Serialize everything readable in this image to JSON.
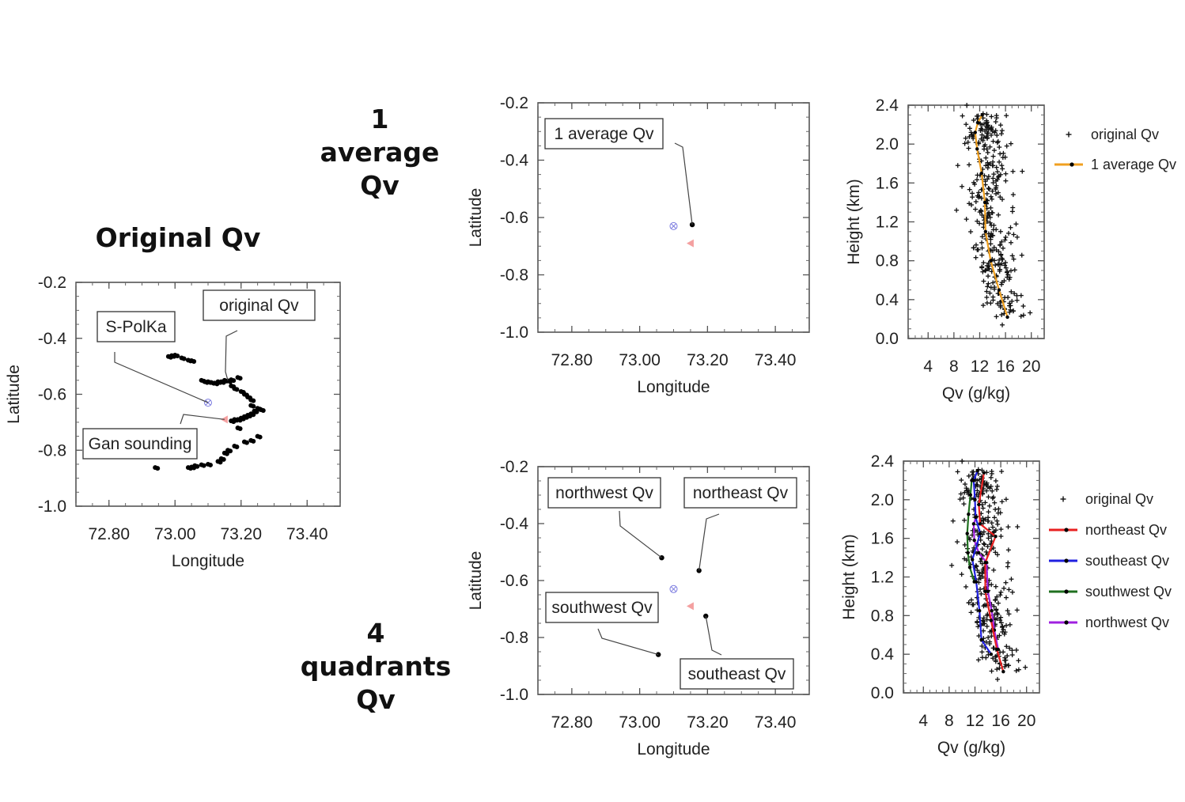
{
  "headings": {
    "original": "Original Qv",
    "average": [
      "1",
      "average",
      "Qv"
    ],
    "quadrants": [
      "4",
      "quadrants",
      "Qv"
    ]
  },
  "colors": {
    "spolka": "#7b7be0",
    "gan": "#f4a0a0",
    "average": "#f0a020",
    "northeast": "#e82020",
    "southeast": "#2020e0",
    "southwest": "#207020",
    "northwest": "#a020e0"
  },
  "chart_data": [
    {
      "id": "map-original",
      "type": "scatter",
      "title": "Original Qv",
      "xlabel": "Longitude",
      "ylabel": "Latitude",
      "xlim": [
        72.7,
        73.5
      ],
      "ylim": [
        -1.0,
        -0.2
      ],
      "xticks": [
        "72.80",
        "73.00",
        "73.20",
        "73.40"
      ],
      "xtick_values": [
        72.8,
        73.0,
        73.2,
        73.4
      ],
      "yticks": [
        "-0.2",
        "-0.4",
        "-0.6",
        "-0.8",
        "-1.0"
      ],
      "ytick_values": [
        -0.2,
        -0.4,
        -0.6,
        -0.8,
        -1.0
      ],
      "annotations": [
        {
          "text": "S-PolKa",
          "target": [
            73.1,
            -0.63
          ]
        },
        {
          "text": "original Qv",
          "target": [
            73.16,
            -0.55
          ]
        },
        {
          "text": "Gan sounding",
          "target": [
            73.15,
            -0.69
          ]
        }
      ],
      "spolka": [
        73.1,
        -0.63
      ],
      "gan": [
        73.15,
        -0.69
      ],
      "points": [
        [
          72.98,
          -0.465
        ],
        [
          72.99,
          -0.462
        ],
        [
          73.0,
          -0.46
        ],
        [
          73.02,
          -0.47
        ],
        [
          73.04,
          -0.478
        ],
        [
          73.05,
          -0.48
        ],
        [
          73.08,
          -0.55
        ],
        [
          73.09,
          -0.555
        ],
        [
          73.1,
          -0.555
        ],
        [
          73.11,
          -0.558
        ],
        [
          73.12,
          -0.56
        ],
        [
          73.13,
          -0.555
        ],
        [
          73.14,
          -0.555
        ],
        [
          73.15,
          -0.55
        ],
        [
          73.16,
          -0.552
        ],
        [
          73.17,
          -0.548
        ],
        [
          73.19,
          -0.54
        ],
        [
          73.17,
          -0.57
        ],
        [
          73.18,
          -0.58
        ],
        [
          73.2,
          -0.59
        ],
        [
          73.21,
          -0.6
        ],
        [
          73.22,
          -0.61
        ],
        [
          73.23,
          -0.62
        ],
        [
          73.23,
          -0.64
        ],
        [
          73.25,
          -0.65
        ],
        [
          73.26,
          -0.655
        ],
        [
          73.24,
          -0.66
        ],
        [
          73.23,
          -0.67
        ],
        [
          73.22,
          -0.675
        ],
        [
          73.21,
          -0.68
        ],
        [
          73.2,
          -0.685
        ],
        [
          73.19,
          -0.69
        ],
        [
          73.18,
          -0.69
        ],
        [
          73.17,
          -0.695
        ],
        [
          73.19,
          -0.72
        ],
        [
          73.25,
          -0.75
        ],
        [
          73.23,
          -0.765
        ],
        [
          73.21,
          -0.77
        ],
        [
          73.18,
          -0.785
        ],
        [
          73.16,
          -0.8
        ],
        [
          73.15,
          -0.81
        ],
        [
          73.14,
          -0.83
        ],
        [
          73.13,
          -0.84
        ],
        [
          73.1,
          -0.85
        ],
        [
          73.08,
          -0.852
        ],
        [
          73.06,
          -0.855
        ],
        [
          73.05,
          -0.86
        ],
        [
          73.04,
          -0.862
        ],
        [
          72.94,
          -0.862
        ]
      ]
    },
    {
      "id": "map-average",
      "type": "scatter",
      "xlabel": "Longitude",
      "ylabel": "Latitude",
      "xlim": [
        72.7,
        73.5
      ],
      "ylim": [
        -1.0,
        -0.2
      ],
      "xticks": [
        "72.80",
        "73.00",
        "73.20",
        "73.40"
      ],
      "xtick_values": [
        72.8,
        73.0,
        73.2,
        73.4
      ],
      "yticks": [
        "-0.2",
        "-0.4",
        "-0.6",
        "-0.8",
        "-1.0"
      ],
      "ytick_values": [
        -0.2,
        -0.4,
        -0.6,
        -0.8,
        -1.0
      ],
      "annotations": [
        {
          "text": "1 average Qv",
          "target": [
            73.155,
            -0.625
          ]
        }
      ],
      "spolka": [
        73.1,
        -0.63
      ],
      "gan": [
        73.15,
        -0.69
      ],
      "points": [
        [
          73.155,
          -0.625
        ]
      ]
    },
    {
      "id": "profile-average",
      "type": "scatter",
      "xlabel": "Qv (g/kg)",
      "ylabel": "Height (km)",
      "xlim": [
        0.9,
        22
      ],
      "ylim": [
        0.0,
        2.4
      ],
      "xticks": [
        "4",
        "8",
        "12",
        "16",
        "20"
      ],
      "xtick_values": [
        4,
        8,
        12,
        16,
        20
      ],
      "yticks": [
        "0.0",
        "0.4",
        "0.8",
        "1.2",
        "1.6",
        "2.0",
        "2.4"
      ],
      "ytick_values": [
        0,
        0.4,
        0.8,
        1.2,
        1.6,
        2.0,
        2.4
      ],
      "legend": [
        "original Qv",
        "1 average Qv"
      ],
      "legend_position": "right",
      "series": [
        {
          "name": "1 average Qv",
          "color_key": "average",
          "x": [
            16.3,
            15.0,
            13.7,
            12.9,
            12.8,
            12.3,
            11.6,
            11.3,
            11.7,
            12.4
          ],
          "y": [
            0.22,
            0.5,
            0.8,
            1.1,
            1.4,
            1.7,
            1.95,
            2.12,
            2.22,
            2.3
          ]
        }
      ]
    },
    {
      "id": "map-quadrants",
      "type": "scatter",
      "xlabel": "Longitude",
      "ylabel": "Latitude",
      "xlim": [
        72.7,
        73.5
      ],
      "ylim": [
        -1.0,
        -0.2
      ],
      "xticks": [
        "72.80",
        "73.00",
        "73.20",
        "73.40"
      ],
      "xtick_values": [
        72.8,
        73.0,
        73.2,
        73.4
      ],
      "yticks": [
        "-0.2",
        "-0.4",
        "-0.6",
        "-0.8",
        "-1.0"
      ],
      "ytick_values": [
        -0.2,
        -0.4,
        -0.6,
        -0.8,
        -1.0
      ],
      "annotations": [
        {
          "text": "northwest Qv",
          "target": [
            73.065,
            -0.52
          ]
        },
        {
          "text": "northeast Qv",
          "target": [
            73.175,
            -0.565
          ]
        },
        {
          "text": "southwest Qv",
          "target": [
            73.055,
            -0.86
          ]
        },
        {
          "text": "southeast Qv",
          "target": [
            73.195,
            -0.725
          ]
        }
      ],
      "spolka": [
        73.1,
        -0.63
      ],
      "gan": [
        73.15,
        -0.69
      ],
      "points": [
        [
          73.065,
          -0.52
        ],
        [
          73.175,
          -0.565
        ],
        [
          73.055,
          -0.86
        ],
        [
          73.195,
          -0.725
        ]
      ]
    },
    {
      "id": "profile-quadrants",
      "type": "scatter",
      "xlabel": "Qv (g/kg)",
      "ylabel": "Height (km)",
      "xlim": [
        0.9,
        22
      ],
      "ylim": [
        0.0,
        2.4
      ],
      "xticks": [
        "4",
        "8",
        "12",
        "16",
        "20"
      ],
      "xtick_values": [
        4,
        8,
        12,
        16,
        20
      ],
      "yticks": [
        "0.0",
        "0.4",
        "0.8",
        "1.2",
        "1.6",
        "2.0",
        "2.4"
      ],
      "ytick_values": [
        0,
        0.4,
        0.8,
        1.2,
        1.6,
        2.0,
        2.4
      ],
      "legend": [
        "original Qv",
        "northeast Qv",
        "southeast Qv",
        "southwest Qv",
        "northwest Qv"
      ],
      "legend_position": "right",
      "series": [
        {
          "name": "northeast Qv",
          "color_key": "northeast",
          "x": [
            16.4,
            15.4,
            14.5,
            13.6,
            13.6,
            15.2,
            12.8,
            12.6,
            13.4
          ],
          "y": [
            0.22,
            0.45,
            0.75,
            1.05,
            1.35,
            1.62,
            1.75,
            1.95,
            2.28
          ]
        },
        {
          "name": "southeast Qv",
          "color_key": "southeast",
          "x": [
            14.5,
            13.0,
            12.7,
            12.2,
            11.6,
            12.8,
            12.1,
            12.0,
            11.8,
            12.4
          ],
          "y": [
            0.4,
            0.55,
            0.85,
            1.15,
            1.38,
            1.65,
            1.82,
            2.0,
            2.2,
            2.3
          ]
        },
        {
          "name": "southwest Qv",
          "color_key": "southwest",
          "x": [
            11.9,
            11.2,
            10.9,
            10.8,
            11.0,
            11.3,
            11.5
          ],
          "y": [
            1.15,
            1.3,
            1.45,
            1.65,
            1.85,
            2.05,
            2.2
          ]
        },
        {
          "name": "northwest Qv",
          "color_key": "northwest",
          "x": [
            15.6,
            15.0,
            14.6,
            14.0,
            13.8,
            12.6,
            11.9,
            11.8,
            12.2
          ],
          "y": [
            0.45,
            0.65,
            0.85,
            1.05,
            1.35,
            1.45,
            1.58,
            1.75,
            1.82
          ]
        }
      ]
    }
  ]
}
